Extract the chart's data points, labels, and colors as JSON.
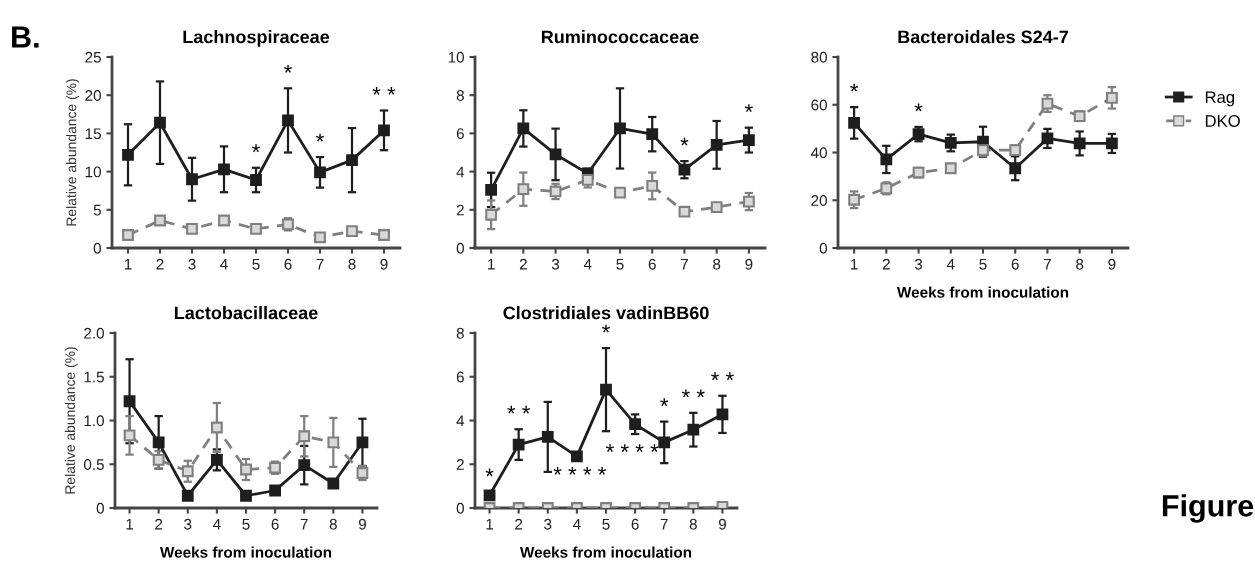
{
  "chart_data": [
    {
      "type": "line",
      "title": "Lachnospiraceae",
      "ylabel": "Relative abundance (%)",
      "categories": [
        "1",
        "2",
        "3",
        "4",
        "5",
        "6",
        "7",
        "8",
        "9"
      ],
      "ylim": [
        0,
        25
      ],
      "yticks": [
        0,
        5,
        10,
        15,
        20,
        25
      ],
      "marker": "square",
      "legend": false,
      "grid": false,
      "series": [
        {
          "color": "#1e1e1e",
          "line_style": "solid",
          "values": [
            12.2,
            16.4,
            9.0,
            10.3,
            8.9,
            16.7,
            9.9,
            11.5,
            15.4
          ],
          "errors": [
            4.0,
            5.4,
            2.8,
            3.0,
            1.6,
            4.2,
            2.0,
            4.2,
            2.6
          ]
        },
        {
          "color": "#7f7f7f",
          "line_style": "dashed",
          "values": [
            1.7,
            3.6,
            2.5,
            3.6,
            2.5,
            3.1,
            1.4,
            2.2,
            1.7
          ],
          "errors": [
            0.2,
            0.4,
            0.3,
            0.3,
            0.3,
            0.8,
            0.3,
            0.3,
            0.2
          ]
        }
      ],
      "annotations": [
        "B.",
        {
          "text": "*",
          "x": "5",
          "y": 8.9
        },
        {
          "text": "*",
          "x": "6",
          "y": 16.7
        },
        {
          "text": "*",
          "x": "7",
          "y": 9.9
        },
        {
          "text": "* *",
          "x": "9",
          "y": 15.4
        }
      ]
    },
    {
      "type": "line",
      "title": "Ruminococcaceae",
      "categories": [
        "1",
        "2",
        "3",
        "4",
        "5",
        "6",
        "7",
        "8",
        "9"
      ],
      "ylim": [
        0,
        10
      ],
      "yticks": [
        0,
        2,
        4,
        6,
        8,
        10
      ],
      "marker": "square",
      "legend": false,
      "grid": false,
      "series": [
        {
          "color": "#1e1e1e",
          "line_style": "solid",
          "values": [
            3.04,
            6.26,
            4.9,
            3.9,
            6.26,
            5.96,
            4.1,
            5.4,
            5.65
          ],
          "errors": [
            0.9,
            0.95,
            1.35,
            0.25,
            2.1,
            0.9,
            0.45,
            1.25,
            0.65
          ]
        },
        {
          "color": "#7f7f7f",
          "line_style": "dashed",
          "values": [
            1.74,
            3.08,
            2.96,
            3.57,
            2.9,
            3.25,
            1.9,
            2.14,
            2.43
          ],
          "errors": [
            0.75,
            0.87,
            0.4,
            0.4,
            0.2,
            0.7,
            0.2,
            0.2,
            0.45
          ]
        }
      ],
      "annotations": [
        {
          "text": "*",
          "x": "7",
          "y": 4.1
        },
        {
          "text": "*",
          "x": "9",
          "y": 5.65
        }
      ]
    },
    {
      "type": "line",
      "title": "Bacteroidales S24-7",
      "xlabel": "Weeks from inoculation",
      "categories": [
        "1",
        "2",
        "3",
        "4",
        "5",
        "6",
        "7",
        "8",
        "9"
      ],
      "ylim": [
        0,
        80
      ],
      "yticks": [
        0,
        20,
        40,
        60,
        80
      ],
      "marker": "square",
      "legend": "right",
      "grid": false,
      "series": [
        {
          "name": "Rag",
          "color": "#1e1e1e",
          "line_style": "solid",
          "values": [
            52.4,
            37.1,
            47.7,
            44.0,
            44.5,
            33.4,
            45.9,
            43.8,
            43.8
          ],
          "errors": [
            6.6,
            5.7,
            3.0,
            3.5,
            6.3,
            5.0,
            4.0,
            5.0,
            4.0
          ]
        },
        {
          "name": "DKO",
          "color": "#7f7f7f",
          "line_style": "dashed",
          "values": [
            20.2,
            25.0,
            31.6,
            33.4,
            41.0,
            41.0,
            60.5,
            55.2,
            62.9
          ],
          "errors": [
            3.5,
            2.5,
            2.0,
            1.5,
            2.5,
            2.0,
            3.5,
            2.0,
            4.5
          ]
        }
      ],
      "annotations": [
        {
          "text": "*",
          "x": "1",
          "y": 52.4
        },
        {
          "text": "*",
          "x": "3",
          "y": 47.7
        }
      ]
    },
    {
      "type": "line",
      "title": "Lactobacillaceae",
      "ylabel": "Relative abundance (%)",
      "xlabel": "Weeks from inoculation",
      "categories": [
        "1",
        "2",
        "3",
        "4",
        "5",
        "6",
        "7",
        "8",
        "9"
      ],
      "ylim": [
        0,
        2.0
      ],
      "yticks": [
        0,
        {
          "value": 0.5,
          "label": "0.5"
        },
        {
          "value": 1.0,
          "label": "1.0"
        },
        {
          "value": 1.5,
          "label": "1.5"
        },
        {
          "value": 2.0,
          "label": "2.0"
        }
      ],
      "marker": "square",
      "legend": false,
      "grid": false,
      "series": [
        {
          "color": "#1e1e1e",
          "line_style": "solid",
          "values": [
            1.22,
            0.75,
            0.14,
            0.55,
            0.14,
            0.2,
            0.49,
            0.28,
            0.75
          ],
          "errors": [
            0.48,
            0.3,
            0.03,
            0.12,
            0.02,
            0.03,
            0.22,
            0.03,
            0.27
          ]
        },
        {
          "color": "#7f7f7f",
          "line_style": "dashed",
          "values": [
            0.83,
            0.55,
            0.42,
            0.92,
            0.44,
            0.46,
            0.82,
            0.75,
            0.4
          ],
          "errors": [
            0.22,
            0.1,
            0.12,
            0.28,
            0.12,
            0.07,
            0.23,
            0.28,
            0.08
          ]
        }
      ]
    },
    {
      "type": "line",
      "title": "Clostridiales vadinBB60",
      "xlabel": "Weeks from inoculation",
      "categories": [
        "1",
        "2",
        "3",
        "4",
        "5",
        "6",
        "7",
        "8",
        "9"
      ],
      "ylim": [
        0,
        8
      ],
      "yticks": [
        0,
        2,
        4,
        6,
        8
      ],
      "marker": "square",
      "legend": false,
      "grid": false,
      "series": [
        {
          "color": "#1e1e1e",
          "line_style": "solid",
          "values": [
            0.58,
            2.9,
            3.25,
            2.36,
            5.41,
            3.83,
            3.0,
            3.58,
            4.28
          ],
          "errors": [
            0.15,
            0.7,
            1.6,
            0.05,
            1.9,
            0.45,
            0.95,
            0.77,
            0.85
          ]
        },
        {
          "color": "#7f7f7f",
          "line_style": "dashed",
          "values": [
            0,
            0,
            0,
            0,
            0,
            0,
            0,
            0,
            0.05
          ],
          "errors": [
            null,
            null,
            null,
            null,
            null,
            null,
            null,
            null,
            null
          ]
        }
      ],
      "annotations": [
        "Figure",
        "* * * *",
        "* * * *",
        {
          "text": "*",
          "x": "1",
          "y": 0.58
        },
        {
          "text": "* *",
          "x": "2",
          "y": 2.9
        },
        {
          "text": "*",
          "x": "5",
          "y": 5.41
        },
        {
          "text": "*",
          "x": "7",
          "y": 3.0
        },
        {
          "text": "* *",
          "x": "8",
          "y": 3.58
        },
        {
          "text": "* *",
          "x": "9",
          "y": 4.28
        }
      ]
    }
  ]
}
